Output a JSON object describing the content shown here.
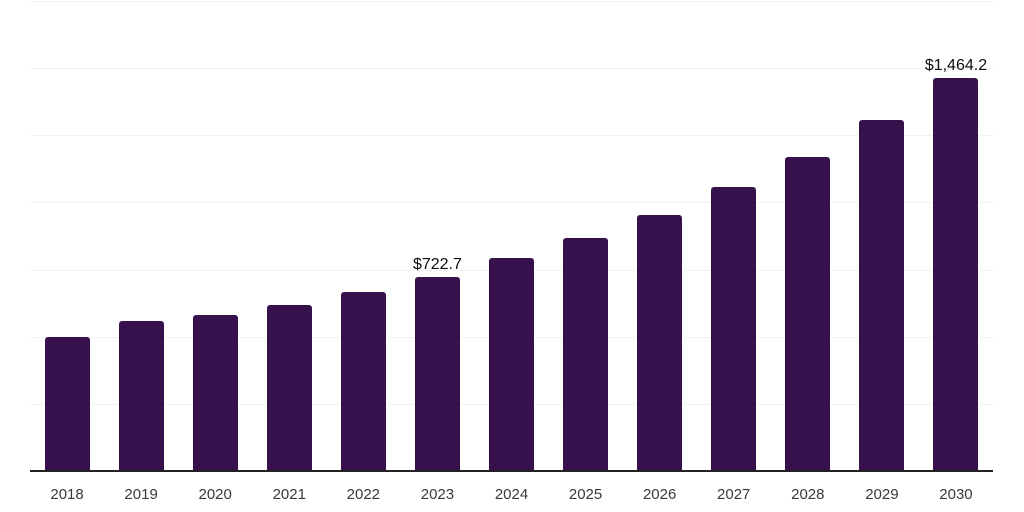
{
  "chart_data": {
    "type": "bar",
    "title": "",
    "xlabel": "",
    "ylabel": "",
    "categories": [
      "2018",
      "2019",
      "2020",
      "2021",
      "2022",
      "2023",
      "2024",
      "2025",
      "2026",
      "2027",
      "2028",
      "2029",
      "2030"
    ],
    "values": [
      498,
      559,
      581,
      619,
      668,
      722.7,
      792,
      869,
      952,
      1056,
      1170,
      1307,
      1464.2
    ],
    "value_labels": [
      "",
      "",
      "",
      "",
      "",
      "$722.7",
      "",
      "",
      "",
      "",
      "",
      "",
      "$1,464.2"
    ],
    "ylim": [
      0,
      1750
    ],
    "gridline_step": 250,
    "grid": "horizontal",
    "legend": "none",
    "y_tick_labels": "none",
    "colors": {
      "bar": "#36114C",
      "gridline": "#f2f2f2",
      "axis_line": "#222222",
      "x_tick_label": "#3a3a3a",
      "value_label": "#0d0d0d",
      "background": "#ffffff"
    }
  }
}
